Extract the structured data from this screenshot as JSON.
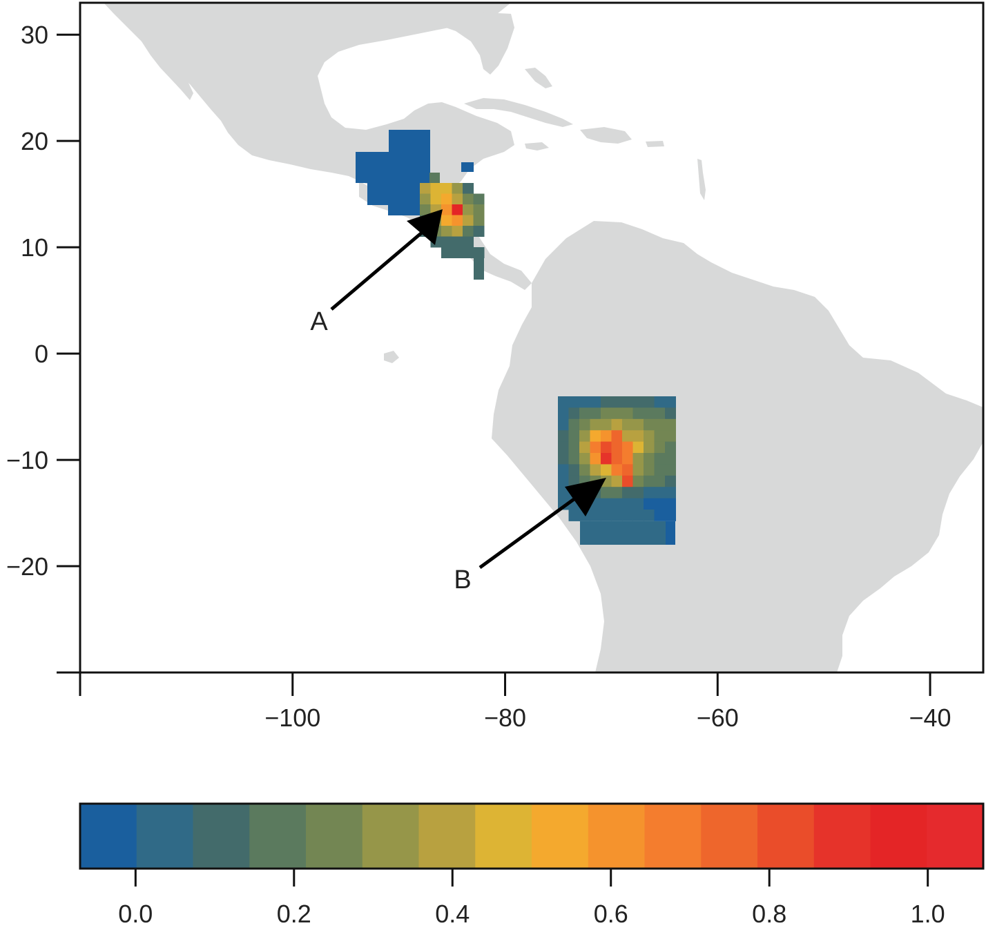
{
  "map": {
    "x_ticks": [
      {
        "value": -100,
        "label": "−100"
      },
      {
        "value": -80,
        "label": "−80"
      },
      {
        "value": -60,
        "label": "−60"
      },
      {
        "value": -40,
        "label": "−40"
      }
    ],
    "x_unlabeled_ticks": [
      -120
    ],
    "y_ticks": [
      {
        "value": 30,
        "label": "30"
      },
      {
        "value": 20,
        "label": "20"
      },
      {
        "value": 10,
        "label": "10"
      },
      {
        "value": 0,
        "label": "0"
      },
      {
        "value": -10,
        "label": "−10"
      },
      {
        "value": -20,
        "label": "−20"
      }
    ],
    "y_unlabeled_ticks": [
      -30
    ],
    "xlim": [
      -120,
      -35
    ],
    "ylim": [
      -30,
      33
    ],
    "land_color": "#d8d9d9",
    "annotations": [
      {
        "label": "A",
        "from": [
          -98,
          4
        ],
        "to": [
          -85.3,
          13.6
        ]
      },
      {
        "label": "B",
        "from": [
          -84.7,
          -20.5
        ],
        "to": [
          -70.3,
          -11.6
        ]
      }
    ],
    "regions": [
      {
        "name": "region-a",
        "approx_center": [
          -86,
          14
        ],
        "peak_value": 1.0
      },
      {
        "name": "region-b",
        "approx_center": [
          -70,
          -11
        ],
        "peak_value": 1.0
      }
    ]
  },
  "colorbar": {
    "colors": [
      "#1a5f9e",
      "#306a87",
      "#436b6b",
      "#5b7a5e",
      "#738653",
      "#969649",
      "#b8a140",
      "#ddb434",
      "#f4a92e",
      "#f5932d",
      "#f47d2e",
      "#ee662c",
      "#ea4d2a",
      "#e6332a",
      "#e42526",
      "#e52a2d"
    ],
    "ticks": [
      {
        "value": 0.0,
        "label": "0.0"
      },
      {
        "value": 0.2,
        "label": "0.2"
      },
      {
        "value": 0.4,
        "label": "0.4"
      },
      {
        "value": 0.6,
        "label": "0.6"
      },
      {
        "value": 0.8,
        "label": "0.8"
      },
      {
        "value": 1.0,
        "label": "1.0"
      }
    ],
    "range": [
      -0.07,
      1.07
    ]
  }
}
